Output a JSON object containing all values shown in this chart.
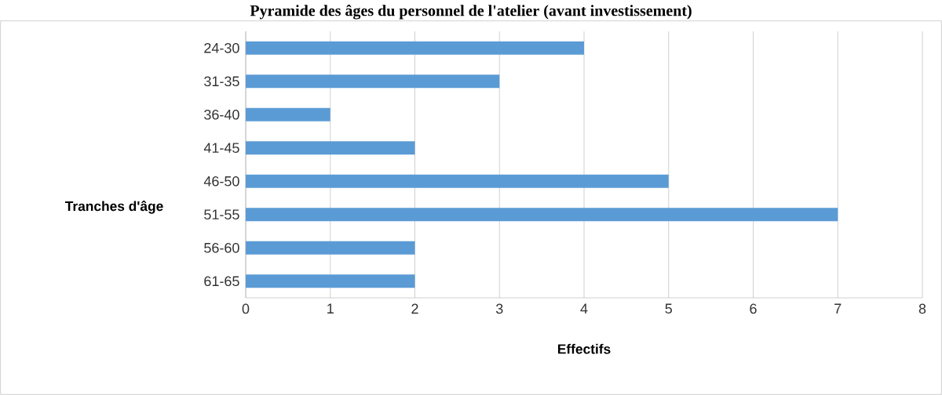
{
  "chart_data": {
    "type": "bar",
    "orientation": "horizontal",
    "title": "Pyramide des âges du personnel de l'atelier (avant investissement)",
    "xlabel": "Effectifs",
    "ylabel": "Tranches d'âge",
    "categories": [
      "24-30",
      "31-35",
      "36-40",
      "41-45",
      "46-50",
      "51-55",
      "56-60",
      "61-65"
    ],
    "values": [
      4,
      3,
      1,
      2,
      5,
      7,
      2,
      2
    ],
    "color": "#5b9bd5",
    "xlim": [
      0,
      8
    ],
    "xticks": [
      0,
      1,
      2,
      3,
      4,
      5,
      6,
      7,
      8
    ],
    "grid": "x"
  }
}
